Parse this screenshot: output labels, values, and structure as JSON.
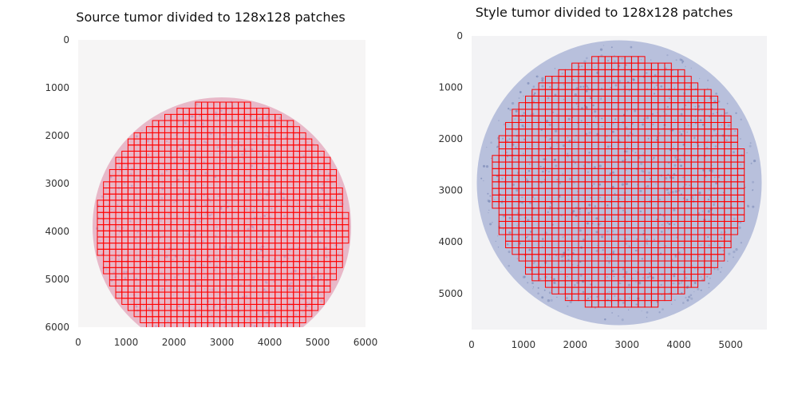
{
  "figure": {
    "background": "#ffffff"
  },
  "chart_data": [
    {
      "type": "image",
      "title": "Source tumor divided to 128x128 patches",
      "xlabel": "",
      "ylabel": "",
      "xlim": [
        0,
        6000
      ],
      "ylim": [
        6000,
        0
      ],
      "xticks": [
        0,
        1000,
        2000,
        3000,
        4000,
        5000,
        6000
      ],
      "yticks": [
        0,
        1000,
        2000,
        3000,
        4000,
        5000,
        6000
      ],
      "grid": false,
      "tissue": {
        "shape": "circle",
        "center": [
          3000,
          3900
        ],
        "radius": 2700,
        "color": "#e8b8c8",
        "texture_color": "#b890c0"
      },
      "patch_grid": {
        "edge_color": "#ff0000",
        "patch_size_data_units": 128,
        "region_center": [
          3000,
          3900
        ],
        "region_radius": 2600
      }
    },
    {
      "type": "image",
      "title": "Style tumor divided to 128x128 patches",
      "xlabel": "",
      "ylabel": "",
      "xlim": [
        0,
        5700
      ],
      "ylim": [
        5700,
        0
      ],
      "xticks": [
        0,
        1000,
        2000,
        3000,
        4000,
        5000
      ],
      "yticks": [
        0,
        1000,
        2000,
        3000,
        4000,
        5000
      ],
      "grid": false,
      "tissue": {
        "shape": "circle",
        "center": [
          2850,
          2850
        ],
        "radius": 2750,
        "color": "#b8c0dc",
        "texture_color": "#7080b0"
      },
      "patch_grid": {
        "edge_color": "#ff0000",
        "patch_size_data_units": 128,
        "region_center": [
          2850,
          2850
        ],
        "region_radius": 2450
      }
    }
  ]
}
